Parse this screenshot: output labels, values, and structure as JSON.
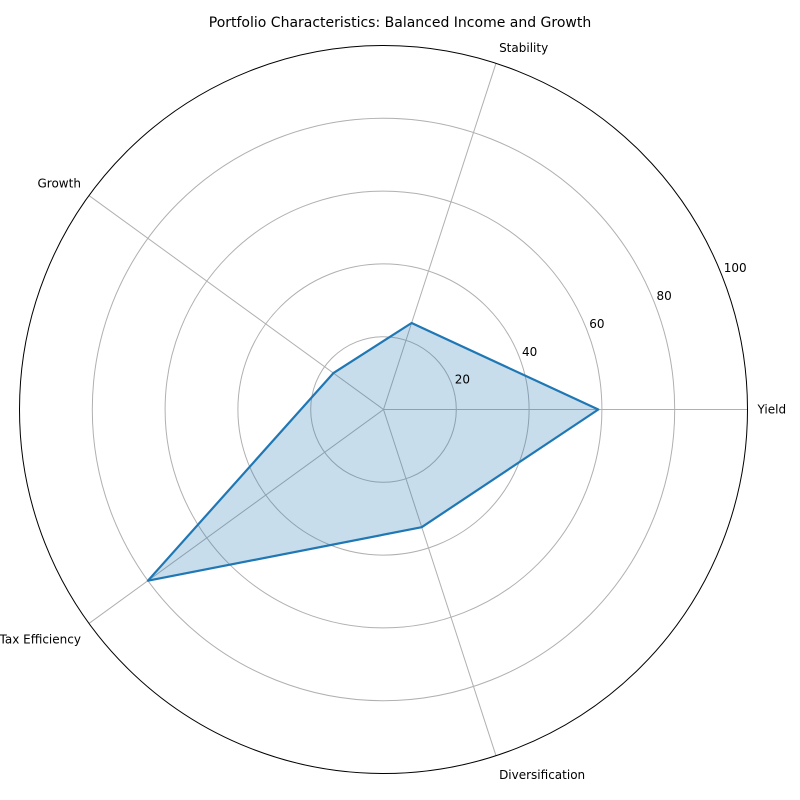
{
  "chart_data": {
    "type": "radar",
    "title": "Portfolio Characteristics: Balanced Income and Growth",
    "categories": [
      "Yield",
      "Stability",
      "Growth",
      "Tax Efficiency",
      "Diversification"
    ],
    "series": [
      {
        "values": [
          59,
          25,
          17,
          80,
          34
        ]
      }
    ],
    "rlim": [
      0,
      100
    ],
    "r_ticks": [
      20,
      40,
      60,
      80,
      100
    ],
    "r_tick_labels": [
      "20",
      "40",
      "60",
      "80",
      "100"
    ],
    "grid": true,
    "colors": {
      "line": "#1f77b4",
      "fill": "#1f77b4",
      "grid": "#b0b0b0",
      "outline": "#000000"
    }
  }
}
